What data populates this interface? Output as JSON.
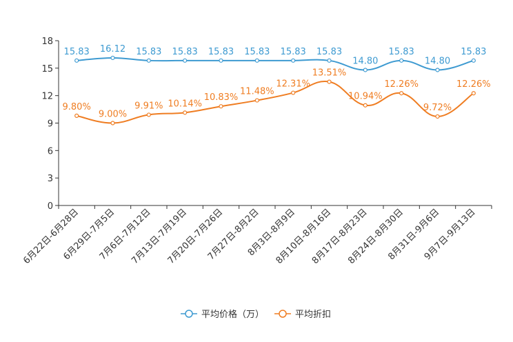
{
  "chart_data": {
    "type": "line",
    "title": "",
    "xlabel": "",
    "ylabel": "",
    "ylim": [
      0,
      18
    ],
    "yticks": [
      0,
      3,
      6,
      9,
      12,
      15,
      18
    ],
    "grid": false,
    "legend_position": "bottom-center",
    "categories": [
      "6月22日-6月28日",
      "6月29日-7月5日",
      "7月6日-7月12日",
      "7月13日-7月19日",
      "7月20日-7月26日",
      "7月27日-8月2日",
      "8月3日-8月9日",
      "8月10日-8月16日",
      "8月17日-8月23日",
      "8月24日-8月30日",
      "8月31日-9月6日",
      "9月7日-9月13日"
    ],
    "series": [
      {
        "name": "平均价格（万）",
        "color": "#3d9ad1",
        "values": [
          15.83,
          16.12,
          15.83,
          15.83,
          15.83,
          15.83,
          15.83,
          15.83,
          14.8,
          15.83,
          14.8,
          15.83
        ],
        "labels": [
          "15.83",
          "16.12",
          "15.83",
          "15.83",
          "15.83",
          "15.83",
          "15.83",
          "15.83",
          "14.80",
          "15.83",
          "14.80",
          "15.83"
        ]
      },
      {
        "name": "平均折扣",
        "color": "#ef7d22",
        "values": [
          9.8,
          9.0,
          9.91,
          10.14,
          10.83,
          11.48,
          12.31,
          13.51,
          10.94,
          12.26,
          9.72,
          12.26
        ],
        "labels": [
          "9.80%",
          "9.00%",
          "9.91%",
          "10.14%",
          "10.83%",
          "11.48%",
          "12.31%",
          "13.51%",
          "10.94%",
          "12.26%",
          "9.72%",
          "12.26%"
        ]
      }
    ]
  }
}
